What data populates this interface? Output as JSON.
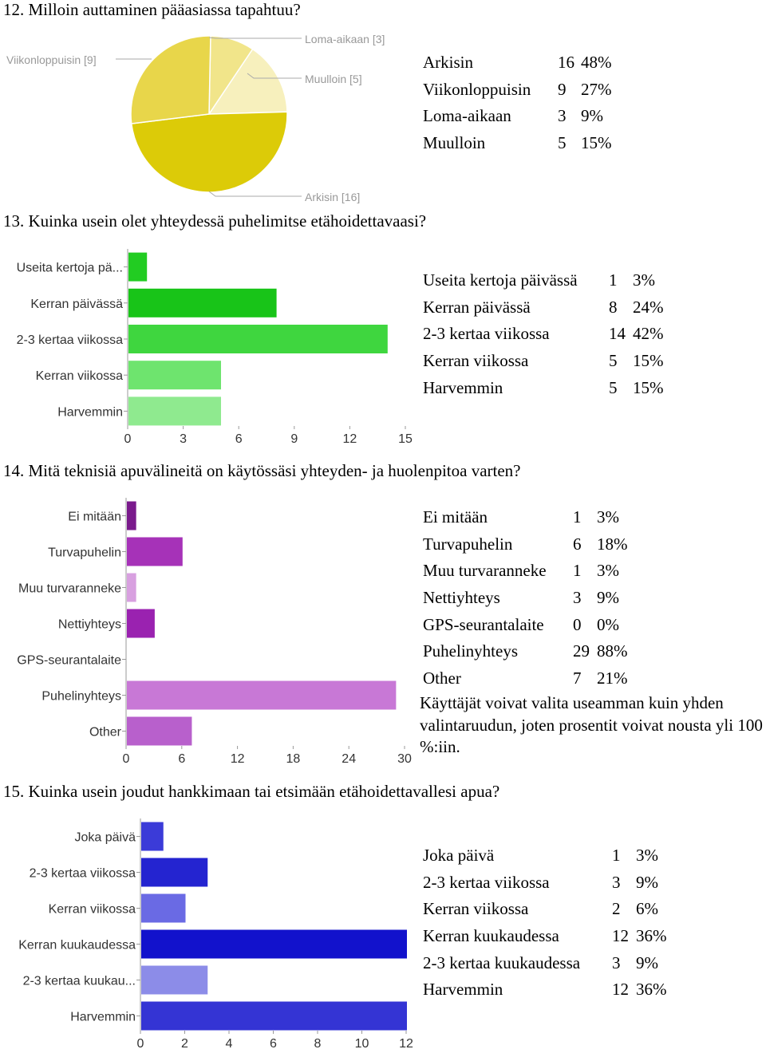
{
  "questions": {
    "q12": "12. Milloin auttaminen pääasiassa tapahtuu?",
    "q13": "13. Kuinka usein olet yhteydessä puhelimitse etähoidettavaasi?",
    "q14": "14. Mitä teknisiä apuvälineitä on käytössäsi yhteyden- ja huolenpitoa varten?",
    "q15": "15. Kuinka usein joudut hankkimaan tai etsimään etähoidettavallesi apua?"
  },
  "stats": {
    "q12": [
      {
        "label": "Arkisin",
        "count": "16",
        "pct": "48%"
      },
      {
        "label": "Viikonloppuisin",
        "count": "9",
        "pct": "27%"
      },
      {
        "label": "Loma-aikaan",
        "count": "3",
        "pct": "9%"
      },
      {
        "label": "Muulloin",
        "count": "5",
        "pct": "15%"
      }
    ],
    "q13": [
      {
        "label": "Useita kertoja päivässä",
        "count": "1",
        "pct": "3%"
      },
      {
        "label": "Kerran päivässä",
        "count": "8",
        "pct": "24%"
      },
      {
        "label": "2-3 kertaa viikossa",
        "count": "14",
        "pct": "42%"
      },
      {
        "label": "Kerran viikossa",
        "count": "5",
        "pct": "15%"
      },
      {
        "label": "Harvemmin",
        "count": "5",
        "pct": "15%"
      }
    ],
    "q14": [
      {
        "label": "Ei mitään",
        "count": "1",
        "pct": "3%"
      },
      {
        "label": "Turvapuhelin",
        "count": "6",
        "pct": "18%"
      },
      {
        "label": "Muu turvaranneke",
        "count": "1",
        "pct": "3%"
      },
      {
        "label": "Nettiyhteys",
        "count": "3",
        "pct": "9%"
      },
      {
        "label": "GPS-seurantalaite",
        "count": "0",
        "pct": "0%"
      },
      {
        "label": "Puhelinyhteys",
        "count": "29",
        "pct": "88%"
      },
      {
        "label": "Other",
        "count": "7",
        "pct": "21%"
      }
    ],
    "q14_note": "Käyttäjät voivat valita useamman kuin yhden valintaruudun, joten prosentit voivat nousta yli 100 %:iin.",
    "q15": [
      {
        "label": "Joka päivä",
        "count": "1",
        "pct": "3%"
      },
      {
        "label": "2-3 kertaa viikossa",
        "count": "3",
        "pct": "9%"
      },
      {
        "label": "Kerran viikossa",
        "count": "2",
        "pct": "6%"
      },
      {
        "label": "Kerran kuukaudessa",
        "count": "12",
        "pct": "36%"
      },
      {
        "label": "2-3 kertaa kuukaudessa",
        "count": "3",
        "pct": "9%"
      },
      {
        "label": "Harvemmin",
        "count": "12",
        "pct": "36%"
      }
    ]
  },
  "chart_data": [
    {
      "type": "pie",
      "categories": [
        "Arkisin",
        "Viikonloppuisin",
        "Loma-aikaan",
        "Muulloin"
      ],
      "values": [
        16,
        9,
        3,
        5
      ],
      "slice_labels": [
        "Arkisin [16]",
        "Viikonloppuisin [9]",
        "Loma-aikaan [3]",
        "Muulloin [5]"
      ],
      "colors": [
        "#dccb08",
        "#e8d64a",
        "#f1e58a",
        "#f7f0bd"
      ]
    },
    {
      "type": "bar",
      "orientation": "horizontal",
      "categories": [
        "Useita kertoja pä...",
        "Kerran päivässä",
        "2-3 kertaa viikossa",
        "Kerran viikossa",
        "Harvemmin"
      ],
      "values": [
        1,
        8,
        14,
        5,
        5
      ],
      "xlim": [
        0,
        15
      ],
      "ticks": [
        0,
        3,
        6,
        9,
        12,
        15
      ],
      "colors": [
        "#22cc22",
        "#18c418",
        "#3fd63f",
        "#6ee46e",
        "#8fea8f"
      ]
    },
    {
      "type": "bar",
      "orientation": "horizontal",
      "categories": [
        "Ei mitään",
        "Turvapuhelin",
        "Muu turvaranneke",
        "Nettiyhteys",
        "GPS-seurantalaite",
        "Puhelinyhteys",
        "Other"
      ],
      "values": [
        1,
        6,
        1,
        3,
        0,
        29,
        7
      ],
      "xlim": [
        0,
        30
      ],
      "ticks": [
        0,
        6,
        12,
        18,
        24,
        30
      ],
      "colors": [
        "#7a1a8c",
        "#a632b8",
        "#d8a0e0",
        "#9a22b0",
        "#c070d0",
        "#c878d6",
        "#b860cc"
      ]
    },
    {
      "type": "bar",
      "orientation": "horizontal",
      "categories": [
        "Joka päivä",
        "2-3 kertaa viikossa",
        "Kerran viikossa",
        "Kerran kuukaudessa",
        "2-3 kertaa kuukau...",
        "Harvemmin"
      ],
      "values": [
        1,
        3,
        2,
        12,
        3,
        12
      ],
      "xlim": [
        0,
        12
      ],
      "ticks": [
        0,
        2,
        4,
        6,
        8,
        10,
        12
      ],
      "colors": [
        "#3b3bd8",
        "#2424d0",
        "#6a6ae4",
        "#1212cc",
        "#8c8ce8",
        "#3434d4"
      ]
    }
  ]
}
